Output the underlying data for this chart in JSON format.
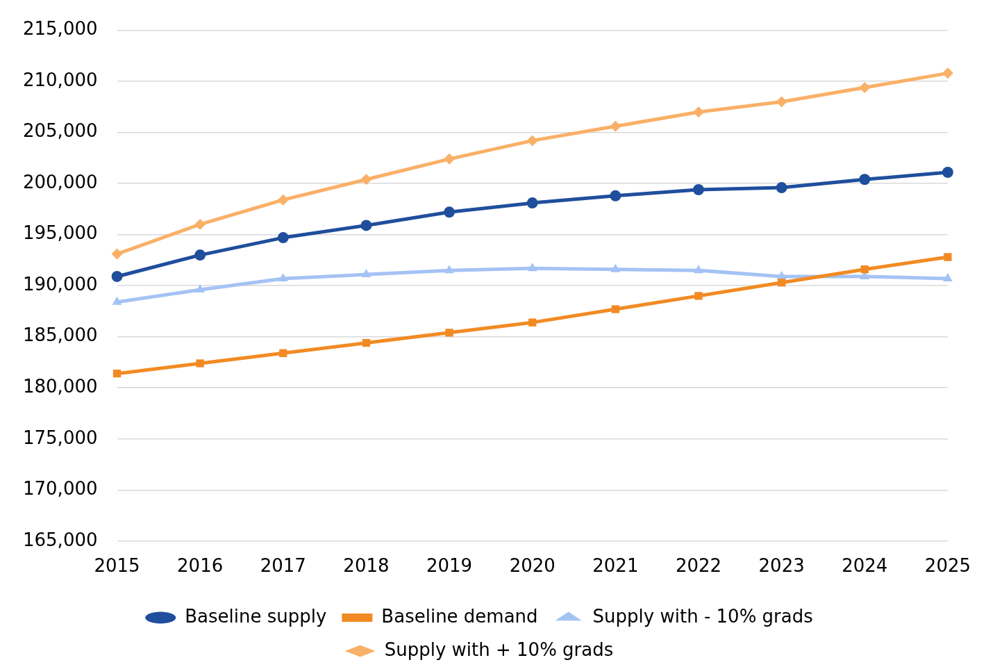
{
  "chart_data": {
    "type": "line",
    "categories": [
      "2015",
      "2016",
      "2017",
      "2018",
      "2019",
      "2020",
      "2021",
      "2022",
      "2023",
      "2024",
      "2025"
    ],
    "series": [
      {
        "name": "Baseline supply",
        "color": "#1f4e9c",
        "marker": "circle",
        "values": [
          190900,
          193000,
          194700,
          195900,
          197200,
          198100,
          198800,
          199400,
          199600,
          200400,
          201100
        ]
      },
      {
        "name": "Baseline demand",
        "color": "#f28a23",
        "marker": "square",
        "values": [
          181400,
          182400,
          183400,
          184400,
          185400,
          186400,
          187700,
          189000,
          190300,
          191600,
          192800
        ]
      },
      {
        "name": "Supply with - 10% grads",
        "color": "#a4c2f4",
        "marker": "triangle",
        "values": [
          188400,
          189600,
          190700,
          191100,
          191500,
          191700,
          191600,
          191500,
          190900,
          190900,
          190700
        ]
      },
      {
        "name": "Supply with + 10% grads",
        "color": "#f9b067",
        "marker": "diamond",
        "values": [
          193100,
          196000,
          198400,
          200400,
          202400,
          204200,
          205600,
          207000,
          208000,
          209400,
          210800
        ]
      }
    ],
    "ylim": [
      165000,
      215000
    ],
    "yticks": [
      {
        "value": 165000,
        "label": "165,000"
      },
      {
        "value": 170000,
        "label": "170,000"
      },
      {
        "value": 175000,
        "label": "175,000"
      },
      {
        "value": 180000,
        "label": "180,000"
      },
      {
        "value": 185000,
        "label": "185,000"
      },
      {
        "value": 190000,
        "label": "190,000"
      },
      {
        "value": 195000,
        "label": "195,000"
      },
      {
        "value": 200000,
        "label": "200,000"
      },
      {
        "value": 205000,
        "label": "205,000"
      },
      {
        "value": 210000,
        "label": "210,000"
      },
      {
        "value": 215000,
        "label": "215,000"
      }
    ],
    "grid": "y",
    "legend": "bottom"
  }
}
